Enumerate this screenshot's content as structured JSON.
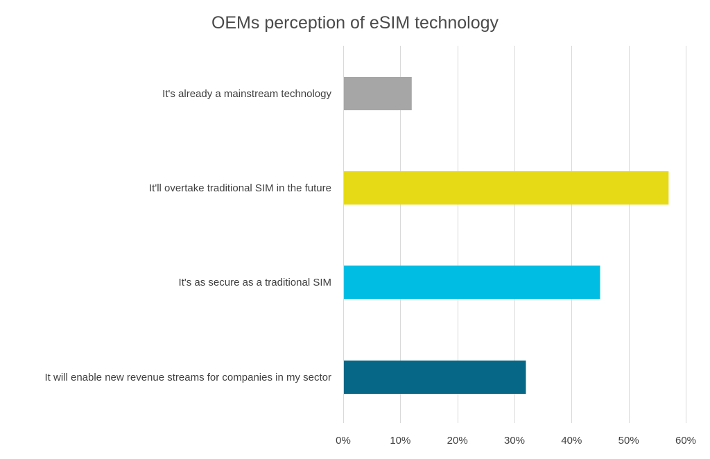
{
  "chart_data": {
    "type": "bar",
    "orientation": "horizontal",
    "title": "OEMs perception of eSIM technology",
    "xlabel": "",
    "ylabel": "",
    "categories": [
      "It's already a mainstream technology",
      "It'll overtake traditional SIM in the future",
      "It's as secure as a traditional SIM",
      "It will enable new revenue streams for companies in my sector"
    ],
    "values": [
      12,
      57,
      45,
      32
    ],
    "bar_colors": [
      "#a6a6a6",
      "#e5da15",
      "#00bde3",
      "#066787"
    ],
    "xlim": [
      0,
      60
    ],
    "x_ticks": [
      0,
      10,
      20,
      30,
      40,
      50,
      60
    ],
    "x_tick_labels": [
      "0%",
      "10%",
      "20%",
      "30%",
      "40%",
      "50%",
      "60%"
    ],
    "grid": true,
    "legend": "none"
  }
}
